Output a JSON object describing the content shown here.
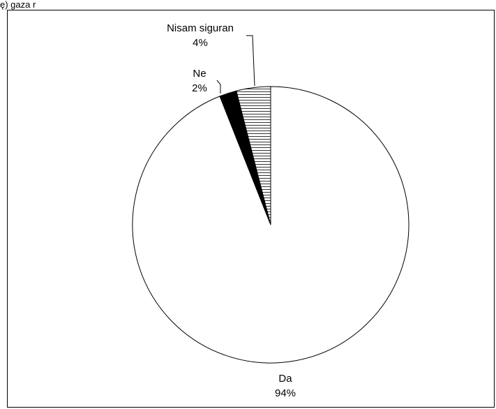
{
  "header_fragment": "ę) gaza r",
  "chart_data": {
    "type": "pie",
    "title": "",
    "slices": [
      {
        "label": "Da",
        "percent_label": "94%",
        "value": 94,
        "fill": "white"
      },
      {
        "label": "Ne",
        "percent_label": "2%",
        "value": 2,
        "fill": "black"
      },
      {
        "label": "Nisam siguran",
        "percent_label": "4%",
        "value": 4,
        "fill": "hatched"
      }
    ],
    "colors": {
      "outline": "#000000",
      "background": "#ffffff"
    }
  }
}
